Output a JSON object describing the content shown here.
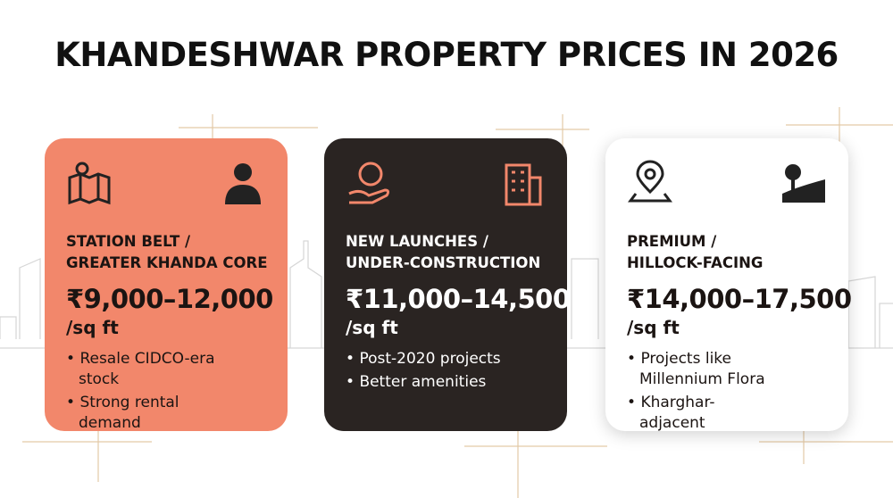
{
  "title": "KHANDESHWAR PROPERTY PRICES IN 2026",
  "cards": [
    {
      "heading": [
        "STATION BELT /",
        "GREATER KHANDA CORE"
      ],
      "price": "₹9,000–12,000",
      "unit": "/sq ft",
      "bullets": [
        "Resale CIDCO-era stock",
        "Strong rental demand"
      ]
    },
    {
      "heading": [
        "NEW LAUNCHES /",
        "UNDER-CONSTRUCTION"
      ],
      "price": "₹11,000–14,500",
      "unit": "/sq ft",
      "bullets": [
        "Post-2020 projects",
        "Better amenities"
      ]
    },
    {
      "heading": [
        "PREMIUM /",
        "HILLOCK-FACING"
      ],
      "price": "₹14,000–17,500",
      "unit": "/sq ft",
      "bullets": [
        "Projects like Millennium Flora",
        "Kharghar-adjacent"
      ]
    }
  ]
}
